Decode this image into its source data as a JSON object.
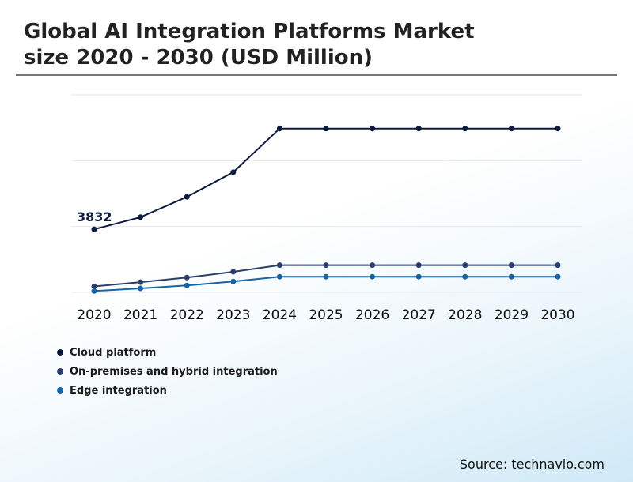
{
  "header": {
    "title_line1": "Global AI Integration Platforms Market",
    "title_line2": "size 2020 - 2030 (USD Million)"
  },
  "source": "Source: technavio.com",
  "chart_data": {
    "type": "line",
    "title": "Global AI Integration Platforms Market size 2020 - 2030 (USD Million)",
    "xlabel": "",
    "ylabel": "",
    "categories": [
      "2020",
      "2021",
      "2022",
      "2023",
      "2024",
      "2025",
      "2026",
      "2027",
      "2028",
      "2029",
      "2030"
    ],
    "ylim": [
      0,
      12000
    ],
    "grid": true,
    "legend": "bottom-left",
    "series": [
      {
        "name": "Cloud platform",
        "color": "#0d1b3e",
        "values": [
          3832,
          4570,
          5800,
          7300,
          9950,
          9950,
          9950,
          9950,
          9950,
          9950,
          9950
        ],
        "labels": [
          "3832",
          "",
          "",
          "",
          "",
          "",
          "",
          "",
          "",
          "",
          ""
        ]
      },
      {
        "name": "On-premises and hybrid integration",
        "color": "#2c3e6b",
        "values": [
          360,
          620,
          900,
          1250,
          1650,
          1650,
          1650,
          1650,
          1650,
          1650,
          1650
        ],
        "labels": [
          "",
          "",
          "",
          "",
          "",
          "",
          "",
          "",
          "",
          "",
          ""
        ]
      },
      {
        "name": "Edge integration",
        "color": "#1565a8",
        "values": [
          80,
          240,
          420,
          660,
          950,
          950,
          950,
          950,
          950,
          950,
          950
        ],
        "labels": [
          "",
          "",
          "",
          "",
          "",
          "",
          "",
          "",
          "",
          "",
          ""
        ]
      }
    ]
  }
}
